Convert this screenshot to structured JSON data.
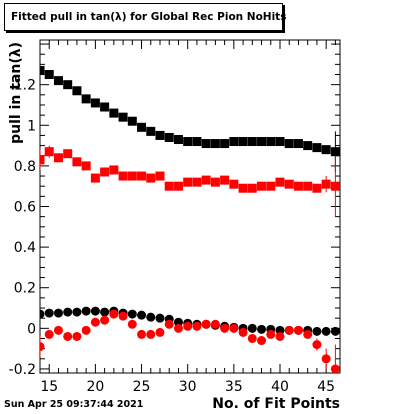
{
  "chart_data": {
    "type": "scatter",
    "title": "Fitted pull in tan(λ) for Global Rec Pion NoHits",
    "xlabel": "No. of Fit Points",
    "ylabel": "pull in tan(λ)",
    "xlim": [
      14,
      46.5
    ],
    "ylim": [
      -0.22,
      1.42
    ],
    "x_ticks": [
      15,
      20,
      25,
      30,
      35,
      40,
      45
    ],
    "y_ticks": [
      -0.2,
      0,
      0.2,
      0.4,
      0.6,
      0.8,
      1.0,
      1.2
    ],
    "y_tick_labels": [
      "-0.2",
      "0",
      "0.2",
      "0.4",
      "0.6",
      "0.8",
      "1",
      "1.2"
    ],
    "grid": false,
    "legend": "none",
    "series": [
      {
        "color": "#000000",
        "marker": "square",
        "x": [
          14,
          15,
          16,
          17,
          18,
          19,
          20,
          21,
          22,
          23,
          24,
          25,
          26,
          27,
          28,
          29,
          30,
          31,
          32,
          33,
          34,
          35,
          36,
          37,
          38,
          39,
          40,
          41,
          42,
          43,
          44,
          45,
          46
        ],
        "y": [
          1.27,
          1.25,
          1.22,
          1.2,
          1.17,
          1.13,
          1.11,
          1.09,
          1.06,
          1.04,
          1.02,
          0.99,
          0.97,
          0.95,
          0.94,
          0.93,
          0.92,
          0.92,
          0.91,
          0.91,
          0.91,
          0.92,
          0.92,
          0.92,
          0.92,
          0.92,
          0.92,
          0.91,
          0.91,
          0.9,
          0.89,
          0.88,
          0.87
        ],
        "yerr": [
          0.02,
          0.01,
          0.01,
          0.01,
          0.01,
          0.01,
          0.01,
          0.01,
          0.01,
          0.01,
          0.01,
          0.01,
          0.01,
          0.01,
          0.01,
          0.01,
          0.01,
          0.01,
          0.01,
          0.01,
          0.01,
          0.01,
          0.01,
          0.01,
          0.01,
          0.01,
          0.01,
          0.01,
          0.01,
          0.01,
          0.01,
          0.01,
          0.1
        ]
      },
      {
        "color": "#ff0000",
        "marker": "square",
        "x": [
          14,
          15,
          16,
          17,
          18,
          19,
          20,
          21,
          22,
          23,
          24,
          25,
          26,
          27,
          28,
          29,
          30,
          31,
          32,
          33,
          34,
          35,
          36,
          37,
          38,
          39,
          40,
          41,
          42,
          43,
          44,
          45,
          46
        ],
        "y": [
          0.83,
          0.87,
          0.84,
          0.86,
          0.82,
          0.8,
          0.74,
          0.77,
          0.78,
          0.75,
          0.75,
          0.75,
          0.74,
          0.75,
          0.7,
          0.7,
          0.72,
          0.72,
          0.73,
          0.72,
          0.73,
          0.71,
          0.69,
          0.69,
          0.7,
          0.7,
          0.72,
          0.71,
          0.7,
          0.7,
          0.69,
          0.71,
          0.7
        ],
        "yerr": [
          0.05,
          0.03,
          0.02,
          0.02,
          0.02,
          0.02,
          0.02,
          0.02,
          0.02,
          0.02,
          0.01,
          0.01,
          0.01,
          0.01,
          0.01,
          0.01,
          0.01,
          0.01,
          0.01,
          0.01,
          0.01,
          0.01,
          0.01,
          0.01,
          0.01,
          0.01,
          0.01,
          0.01,
          0.01,
          0.01,
          0.02,
          0.04,
          0.15
        ]
      },
      {
        "color": "#000000",
        "marker": "circle",
        "x": [
          14,
          15,
          16,
          17,
          18,
          19,
          20,
          21,
          22,
          23,
          24,
          25,
          26,
          27,
          28,
          29,
          30,
          31,
          32,
          33,
          34,
          35,
          36,
          37,
          38,
          39,
          40,
          41,
          42,
          43,
          44,
          45,
          46
        ],
        "y": [
          0.07,
          0.075,
          0.075,
          0.08,
          0.08,
          0.085,
          0.085,
          0.08,
          0.085,
          0.075,
          0.07,
          0.065,
          0.055,
          0.05,
          0.045,
          0.03,
          0.025,
          0.02,
          0.02,
          0.015,
          0.01,
          0.005,
          0.0,
          0.0,
          -0.005,
          -0.005,
          -0.01,
          -0.01,
          -0.01,
          -0.01,
          -0.015,
          -0.015,
          -0.015
        ],
        "yerr": [
          0.005,
          0.005,
          0.005,
          0.005,
          0.005,
          0.005,
          0.005,
          0.005,
          0.005,
          0.005,
          0.005,
          0.005,
          0.005,
          0.005,
          0.005,
          0.005,
          0.005,
          0.005,
          0.005,
          0.005,
          0.005,
          0.005,
          0.005,
          0.005,
          0.005,
          0.005,
          0.005,
          0.005,
          0.005,
          0.005,
          0.005,
          0.005,
          0.005
        ]
      },
      {
        "color": "#ff0000",
        "marker": "circle",
        "x": [
          14,
          15,
          16,
          17,
          18,
          19,
          20,
          21,
          22,
          23,
          24,
          25,
          26,
          27,
          28,
          29,
          30,
          31,
          32,
          33,
          34,
          35,
          36,
          37,
          38,
          39,
          40,
          41,
          42,
          43,
          44,
          45,
          46
        ],
        "y": [
          -0.09,
          -0.03,
          -0.01,
          -0.04,
          -0.04,
          -0.01,
          0.03,
          0.04,
          0.07,
          0.06,
          0.02,
          -0.03,
          -0.03,
          -0.02,
          0.02,
          0.0,
          0.01,
          0.01,
          0.02,
          0.02,
          0.0,
          0.0,
          -0.02,
          -0.05,
          -0.06,
          -0.03,
          -0.04,
          -0.01,
          -0.01,
          -0.03,
          -0.08,
          -0.15,
          -0.2
        ],
        "yerr": [
          0.05,
          0.02,
          0.02,
          0.02,
          0.02,
          0.02,
          0.02,
          0.02,
          0.02,
          0.02,
          0.02,
          0.02,
          0.02,
          0.02,
          0.02,
          0.02,
          0.02,
          0.02,
          0.02,
          0.02,
          0.02,
          0.02,
          0.02,
          0.02,
          0.02,
          0.02,
          0.02,
          0.02,
          0.02,
          0.02,
          0.03,
          0.05,
          0.12
        ]
      }
    ]
  },
  "footer": {
    "date": "Sun Apr 25 09:37:44 2021"
  }
}
